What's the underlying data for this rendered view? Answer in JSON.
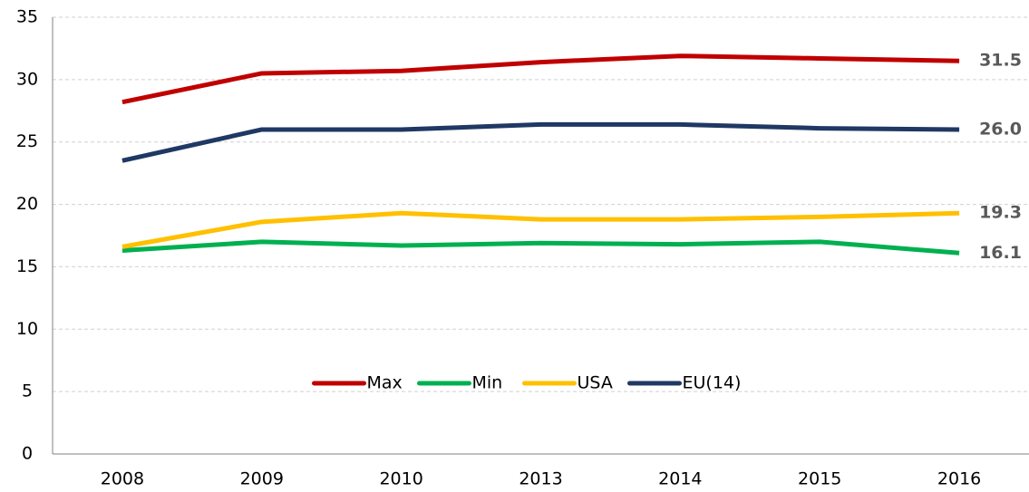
{
  "chart_data": {
    "type": "line",
    "categories": [
      "2008",
      "2009",
      "2010",
      "2013",
      "2014",
      "2015",
      "2016"
    ],
    "series": [
      {
        "name": "Max",
        "color": "#c00000",
        "values": [
          28.2,
          30.5,
          30.7,
          31.4,
          31.9,
          31.7,
          31.5
        ],
        "value_labels": [
          null,
          null,
          null,
          null,
          null,
          null,
          "31.5"
        ]
      },
      {
        "name": "Min",
        "color": "#00b050",
        "values": [
          16.3,
          17.0,
          16.7,
          16.9,
          16.8,
          17.0,
          16.1
        ],
        "value_labels": [
          null,
          null,
          null,
          null,
          null,
          null,
          "16.1"
        ]
      },
      {
        "name": "USA",
        "color": "#ffc000",
        "values": [
          16.6,
          18.6,
          19.3,
          18.8,
          18.8,
          19.0,
          19.3
        ],
        "value_labels": [
          null,
          null,
          null,
          null,
          null,
          null,
          "19.3"
        ]
      },
      {
        "name": "EU(14)",
        "color": "#1f3864",
        "values": [
          23.5,
          26.0,
          26.0,
          26.4,
          26.4,
          26.1,
          26.0
        ],
        "value_labels": [
          null,
          null,
          null,
          null,
          null,
          null,
          "26.0"
        ]
      }
    ],
    "ylim": [
      0,
      35
    ],
    "yticks": [
      0,
      5,
      10,
      15,
      20,
      25,
      30,
      35
    ],
    "grid": true,
    "legend": "center"
  }
}
